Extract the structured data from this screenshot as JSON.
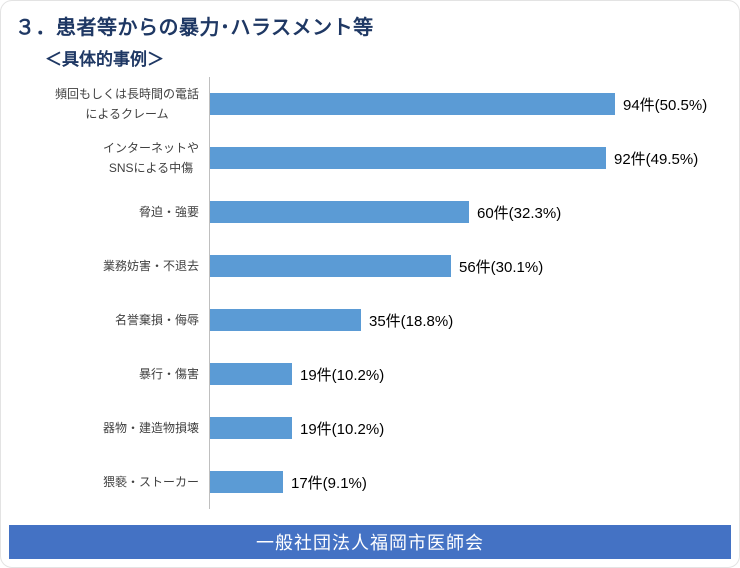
{
  "page": {
    "title": "３．患者等からの暴力･ハラスメント等",
    "subtitle": "＜具体的事例＞",
    "footer": "一般社団法人福岡市医師会"
  },
  "colors": {
    "bar": "#5B9BD5",
    "footer_band": "#4472C4",
    "title_text": "#1F3864",
    "axis_line": "#BFBFBF"
  },
  "chart_data": {
    "type": "bar",
    "orientation": "horizontal",
    "title": "＜具体的事例＞",
    "categories": [
      [
        "頻回もしくは長時間の電話",
        "によるクレーム"
      ],
      [
        "インターネットや",
        "SNSによる中傷"
      ],
      [
        "脅迫・強要"
      ],
      [
        "業務妨害・不退去"
      ],
      [
        "名誉棄損・侮辱"
      ],
      [
        "暴行・傷害"
      ],
      [
        "器物・建造物損壊"
      ],
      [
        "猥褻・ストーカー"
      ]
    ],
    "values": [
      94,
      92,
      60,
      56,
      35,
      19,
      19,
      17
    ],
    "value_labels": [
      "94件(50.5%)",
      "92件(49.5%)",
      "60件(32.3%)",
      "56件(30.1%)",
      "35件(18.8%)",
      "19件(10.2%)",
      "19件(10.2%)",
      "17件(9.1%)"
    ],
    "unit": "件",
    "xlim": [
      0,
      100
    ],
    "legend": false,
    "gridlines": false
  }
}
